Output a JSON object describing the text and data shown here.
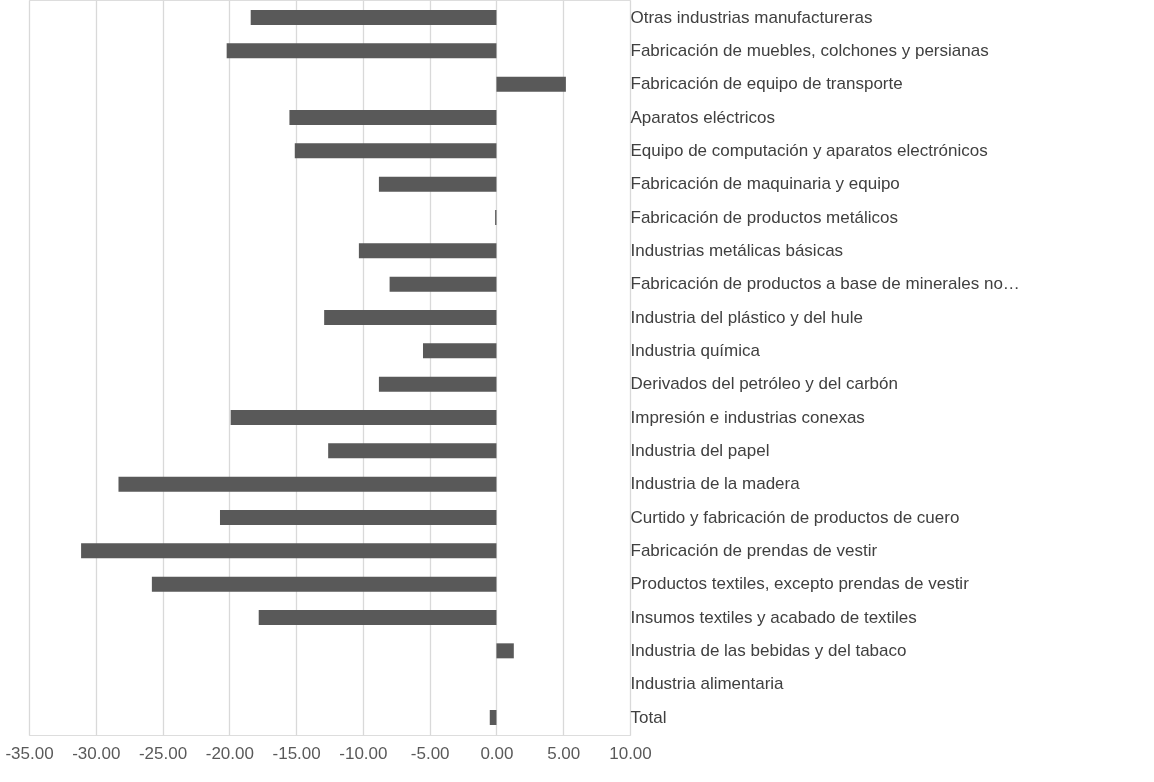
{
  "chart_data": {
    "type": "bar",
    "orientation": "horizontal",
    "categories": [
      "Otras industrias manufactureras",
      "Fabricación de muebles, colchones y persianas",
      "Fabricación de equipo de transporte",
      "Aparatos eléctricos",
      "Equipo de computación y aparatos electrónicos",
      "Fabricación de maquinaria y equipo",
      "Fabricación de productos metálicos",
      "Industrias metálicas básicas",
      "Fabricación de productos a base de minerales no…",
      "Industria del plástico y del hule",
      "Industria química",
      "Derivados del petróleo y del carbón",
      "Impresión e industrias conexas",
      "Industria del papel",
      "Industria de la madera",
      "Curtido y fabricación de productos de cuero",
      "Fabricación de prendas de vestir",
      "Productos textiles, excepto prendas de vestir",
      "Insumos textiles y acabado de textiles",
      "Industria de las bebidas y del tabaco",
      "Industria alimentaria",
      "Total"
    ],
    "values": [
      -18.4,
      -20.2,
      5.2,
      -15.5,
      -15.1,
      -8.8,
      -0.1,
      -10.3,
      -8.0,
      -12.9,
      -5.5,
      -8.8,
      -19.9,
      -12.6,
      -28.3,
      -20.7,
      -31.1,
      -25.8,
      -17.8,
      1.3,
      0.0,
      -0.5
    ],
    "color": "#595959",
    "xlim": [
      -35,
      10
    ],
    "xticks": [
      {
        "value": -35,
        "label": "-35.00"
      },
      {
        "value": -30,
        "label": "-30.00"
      },
      {
        "value": -25,
        "label": "-25.00"
      },
      {
        "value": -20,
        "label": "-20.00"
      },
      {
        "value": -15,
        "label": "-15.00"
      },
      {
        "value": -10,
        "label": "-10.00"
      },
      {
        "value": -5,
        "label": "-5.00"
      },
      {
        "value": 0,
        "label": "0.00"
      },
      {
        "value": 5,
        "label": "5.00"
      },
      {
        "value": 10,
        "label": "10.00"
      }
    ],
    "grid": "x"
  }
}
